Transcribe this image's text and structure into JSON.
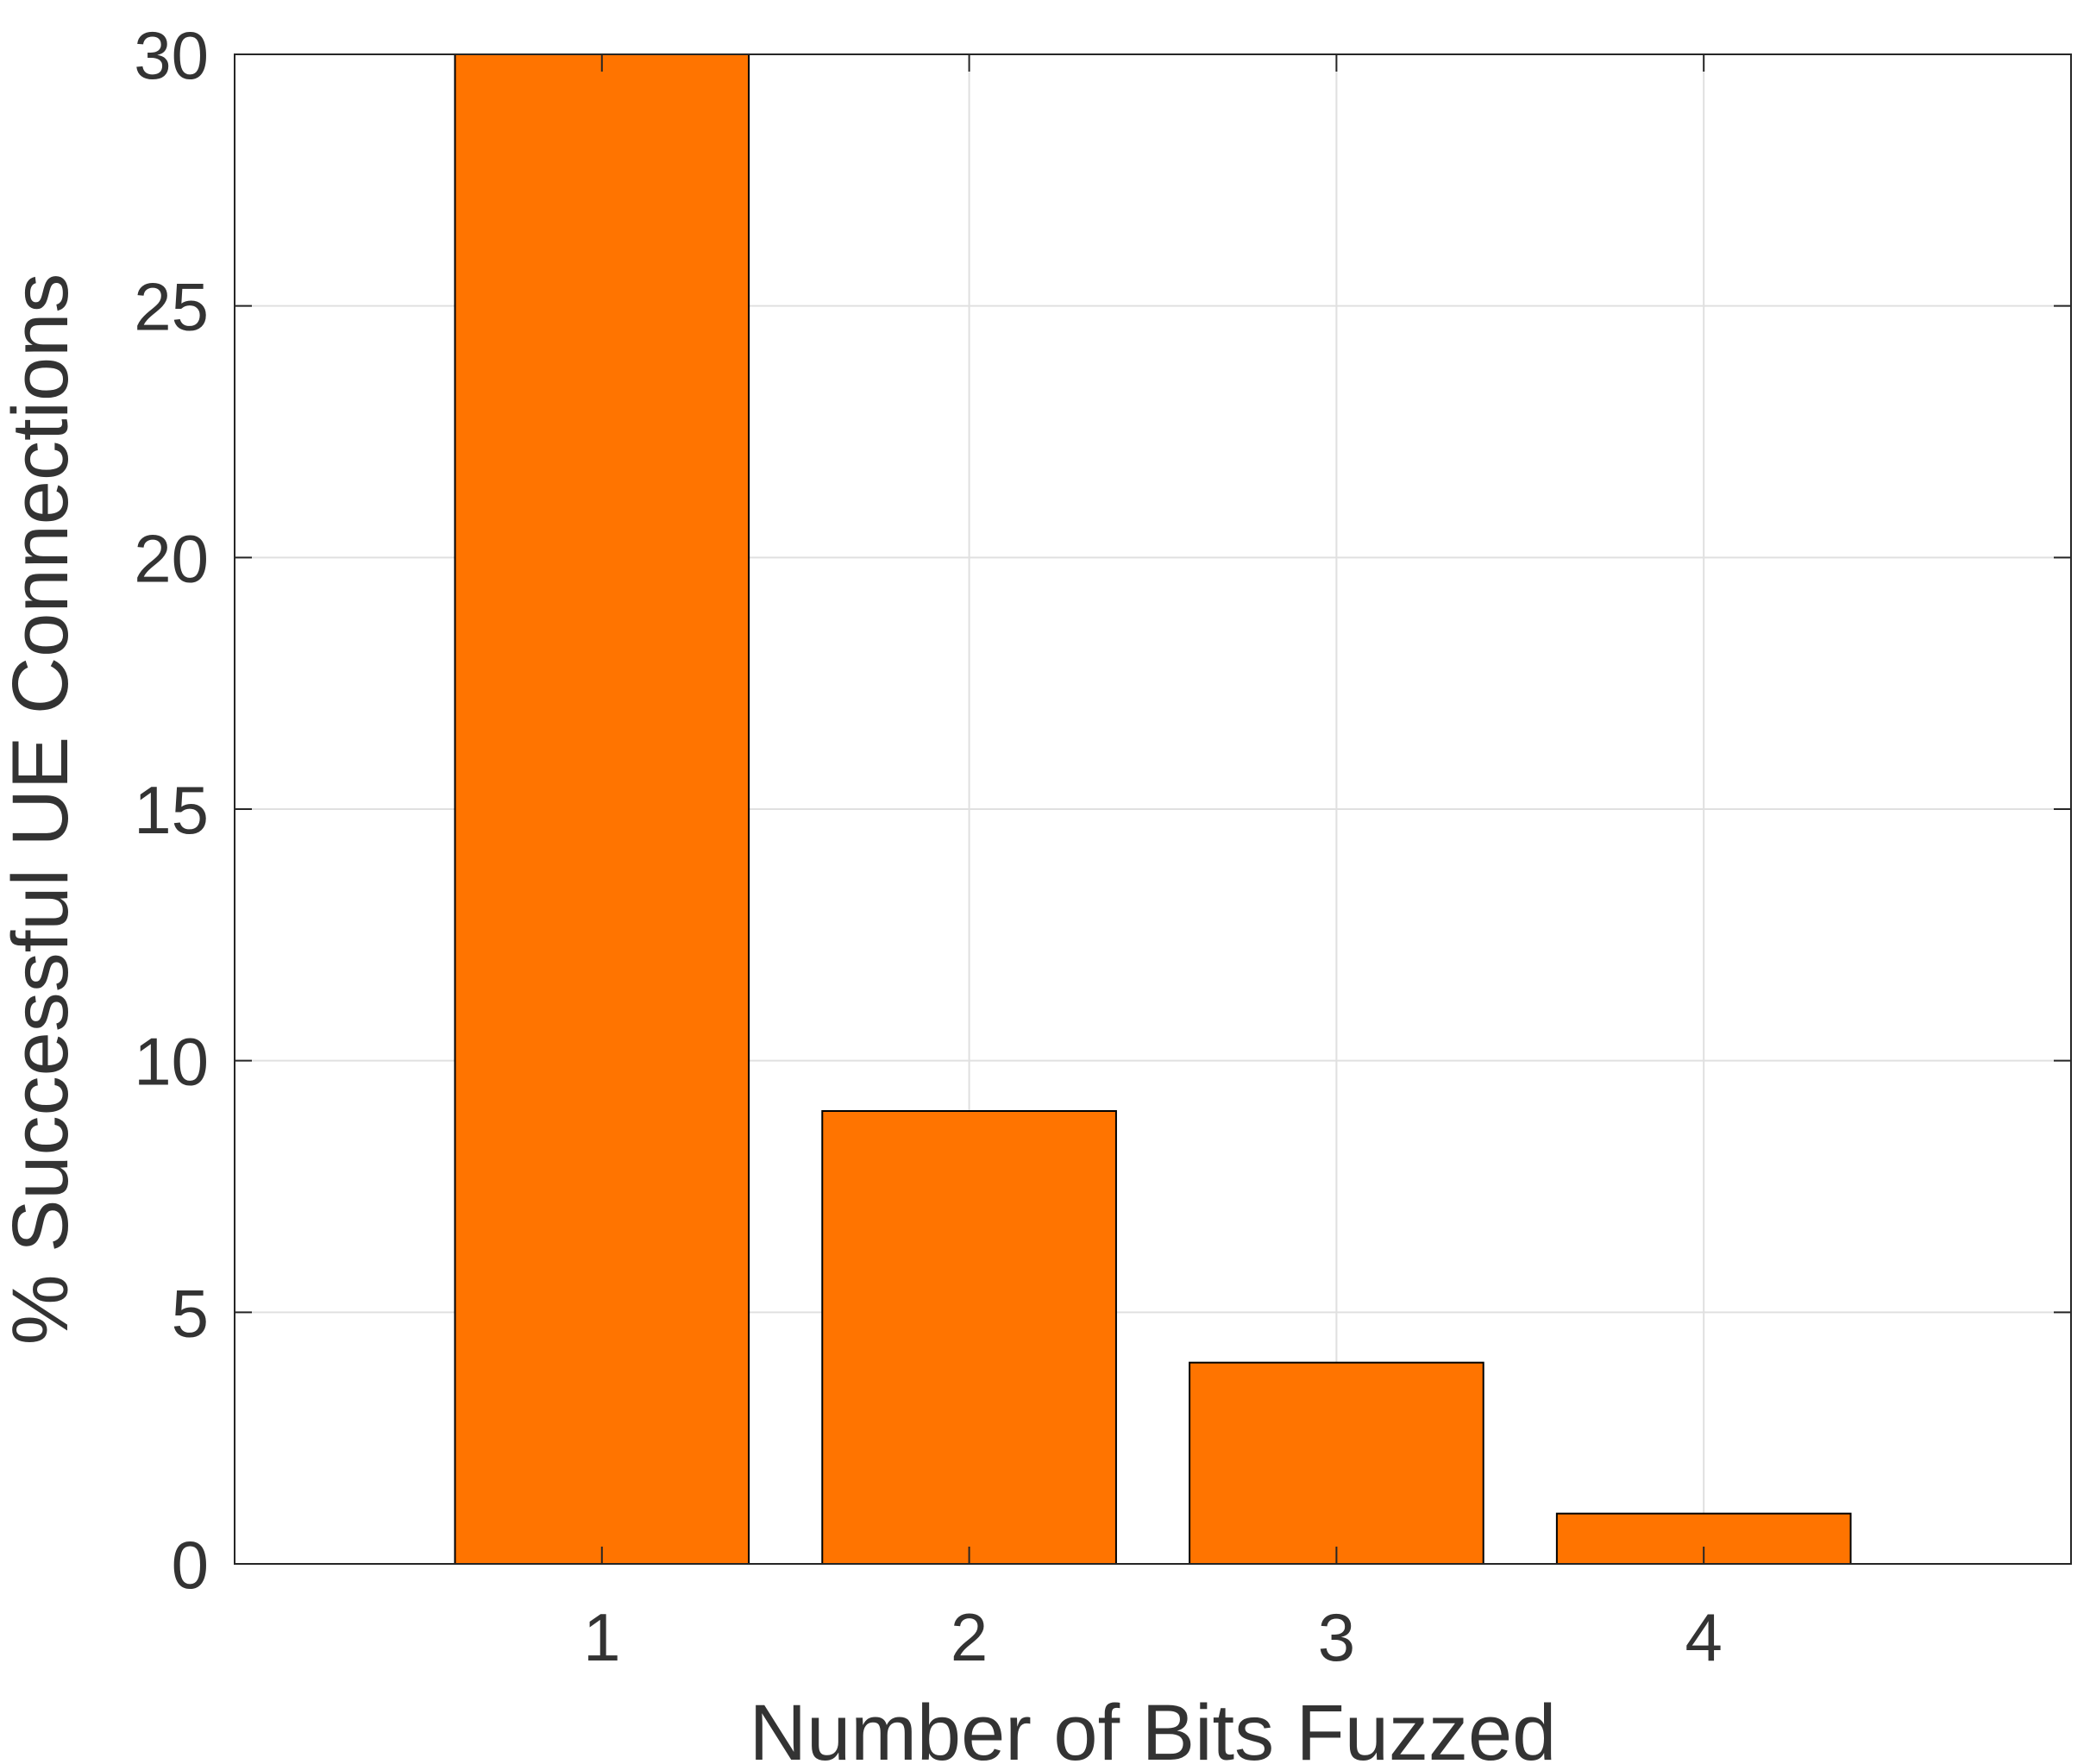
{
  "chart_data": {
    "type": "bar",
    "categories": [
      "1",
      "2",
      "3",
      "4"
    ],
    "values": [
      30,
      9,
      4,
      1
    ],
    "title": "",
    "xlabel": "Number of Bits Fuzzed",
    "ylabel": "% Successful UE Connections",
    "xlim": [
      0,
      5
    ],
    "ylim": [
      0,
      30
    ],
    "yticks": [
      0,
      5,
      10,
      15,
      20,
      25,
      30
    ],
    "grid": true,
    "bar_color": "#ff7400",
    "bar_edge_color": "#000000",
    "grid_color": "#e0e0e0",
    "text_color": "#333333"
  }
}
